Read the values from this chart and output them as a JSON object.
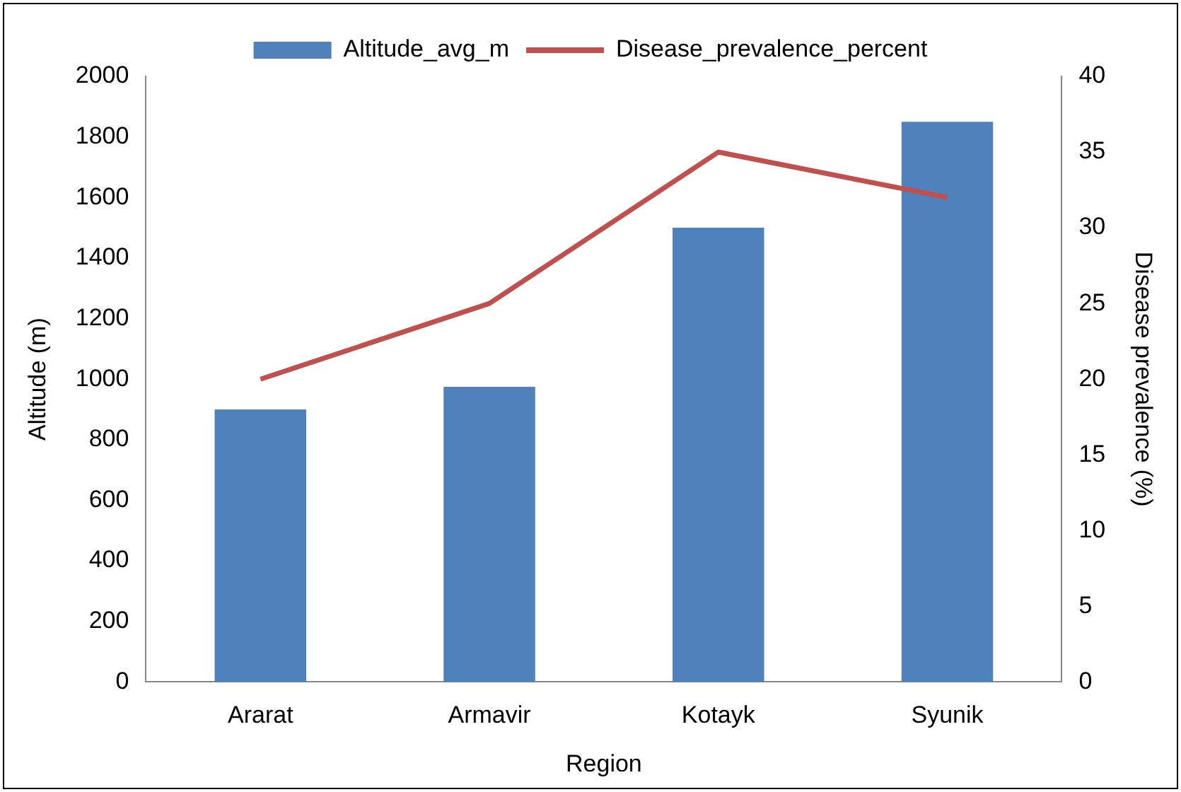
{
  "chart_data": {
    "type": "bar",
    "xlabel": "Region",
    "ylabel": "Altitude (m)",
    "y2label": "Disease prevalence (%)",
    "categories": [
      "Ararat",
      "Armavir",
      "Kotayk",
      "Syunik"
    ],
    "series": [
      {
        "name": "Altitude_avg_m",
        "color": "#4f81bd",
        "values": [
          900,
          975,
          1500,
          1850
        ]
      },
      {
        "name": "Disease_prevalence_percent",
        "type": "line",
        "color": "#c0504d",
        "axis": "y2",
        "values": [
          20,
          25,
          35,
          32
        ]
      }
    ],
    "ylim": [
      0,
      2000
    ],
    "yticks": [
      0,
      200,
      400,
      600,
      800,
      1000,
      1200,
      1400,
      1600,
      1800,
      2000
    ],
    "y2lim": [
      0,
      40
    ],
    "y2ticks": [
      0,
      5,
      10,
      15,
      20,
      25,
      30,
      35,
      40
    ],
    "grid": false,
    "legend": "top",
    "marker": "none"
  }
}
